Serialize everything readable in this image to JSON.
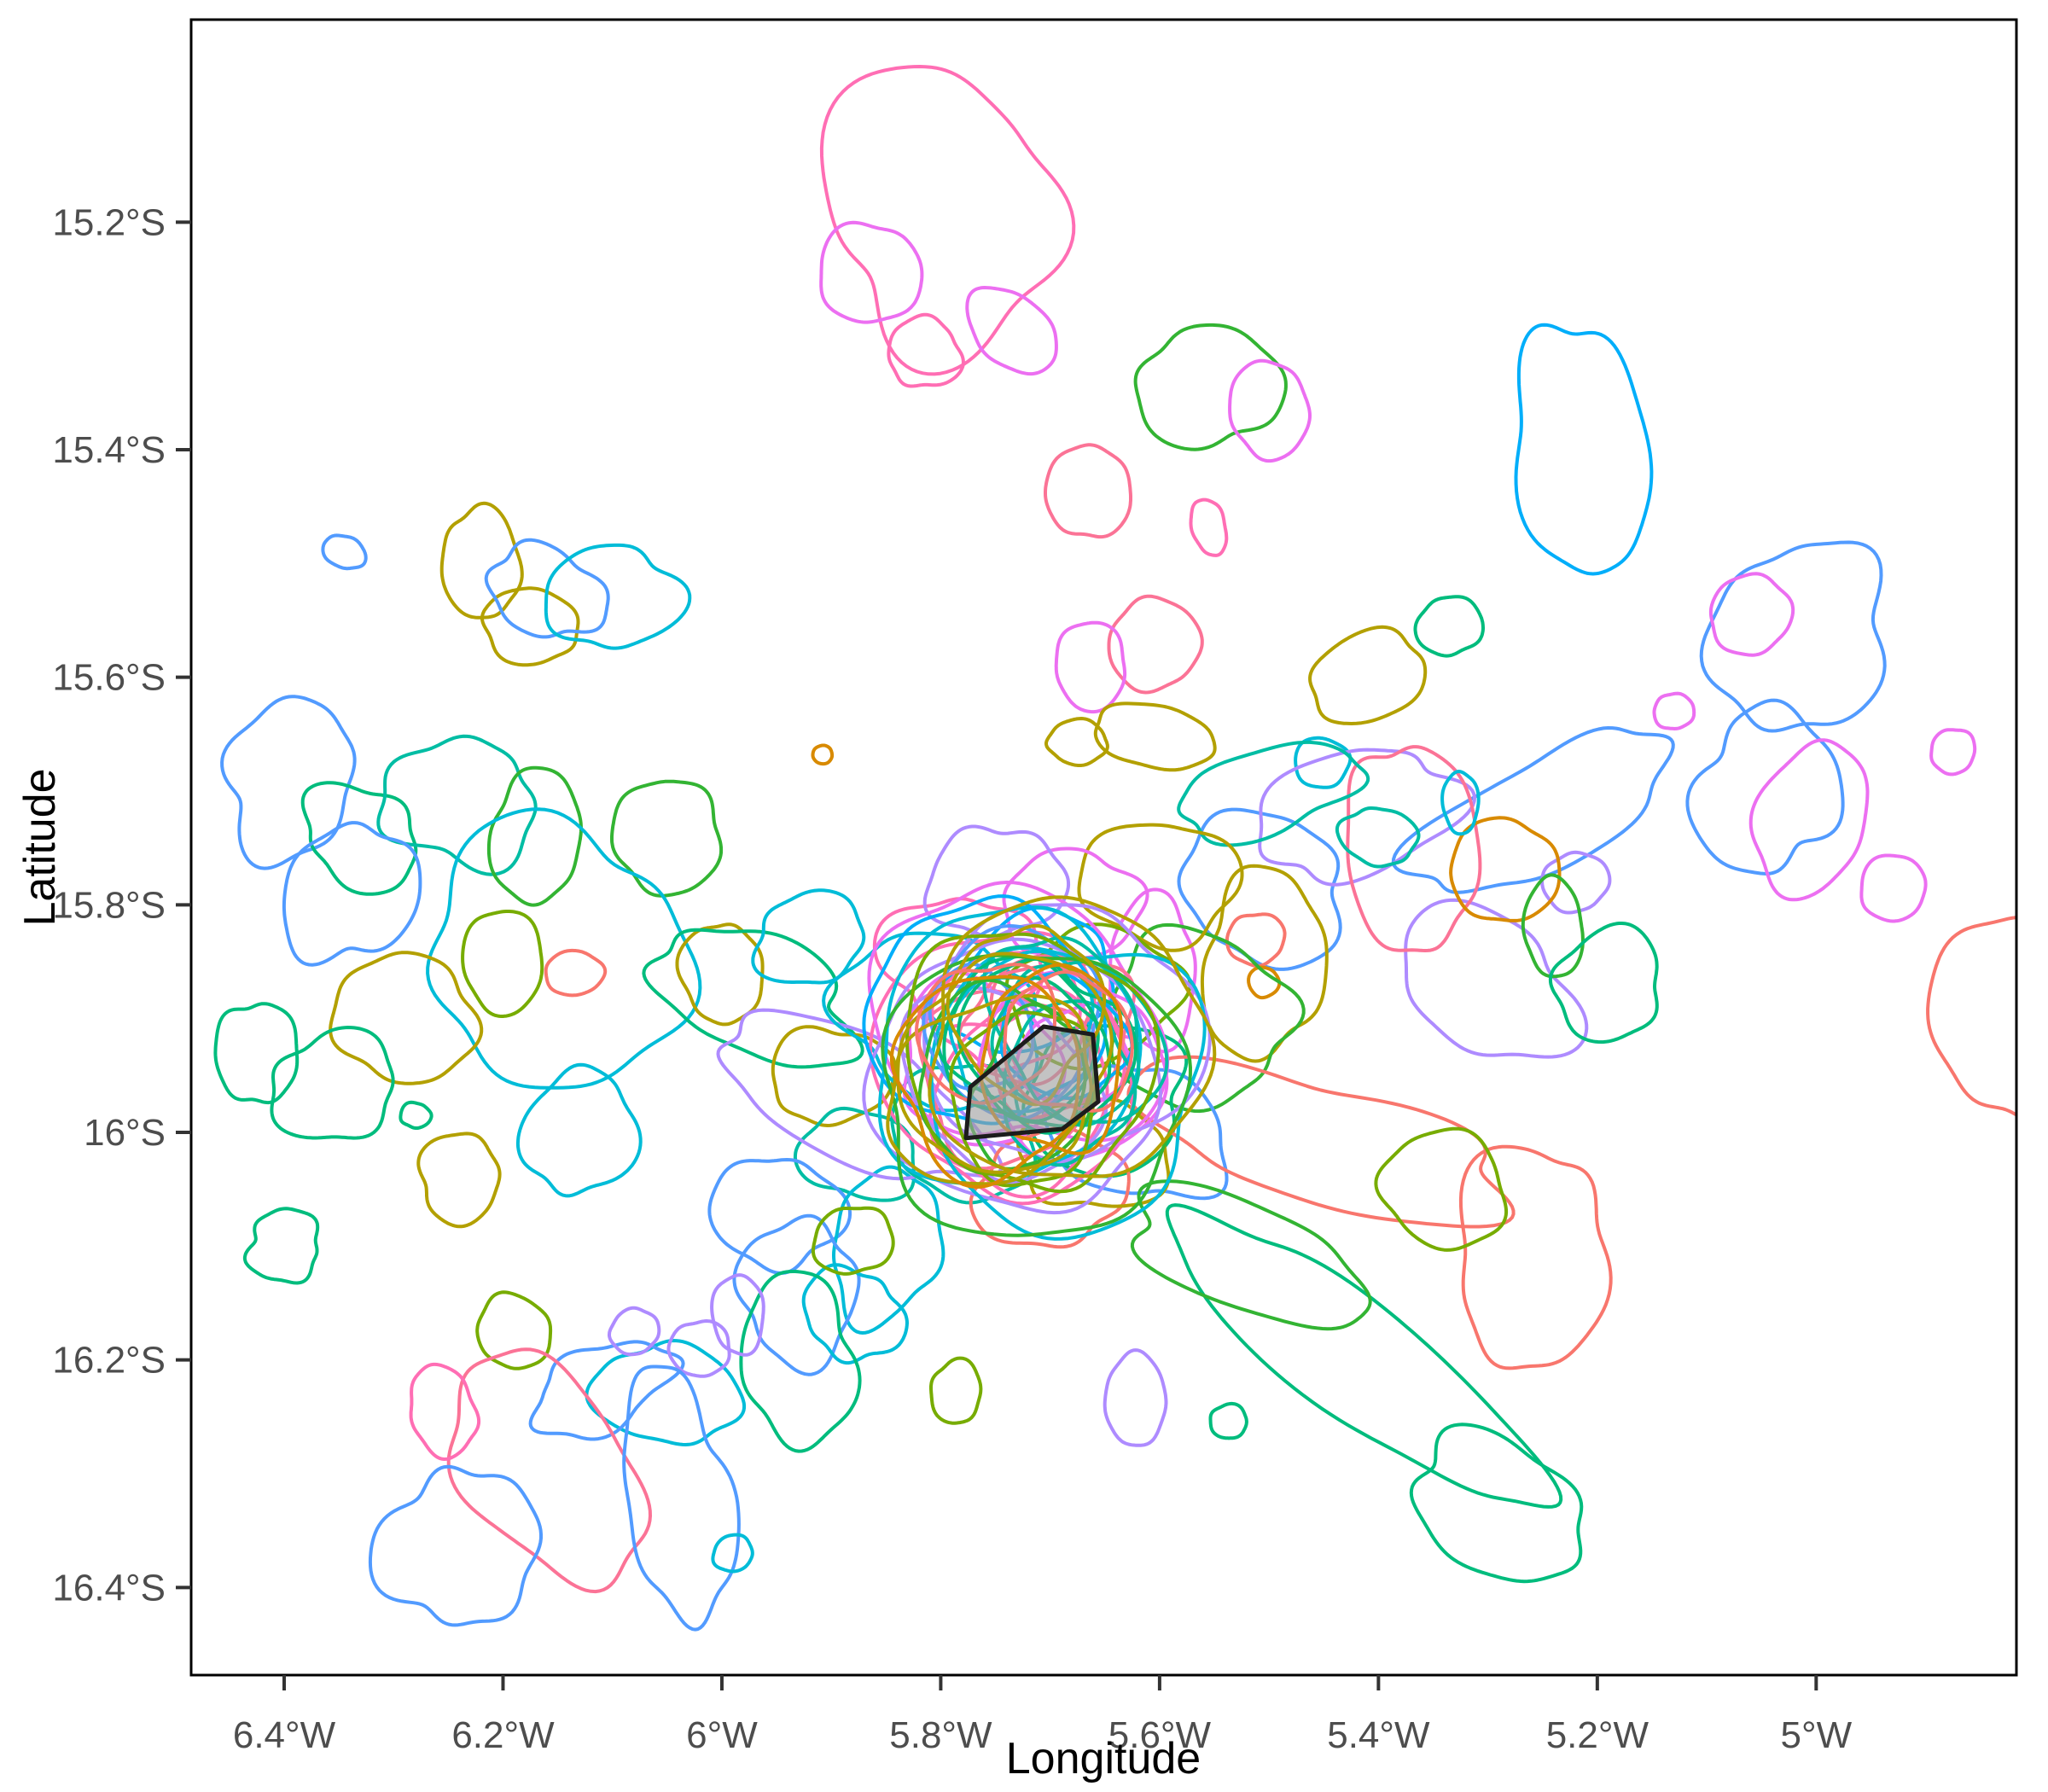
{
  "chart_data": {
    "type": "contour-map",
    "title": "",
    "xlabel": "Longitude",
    "ylabel": "Latitude",
    "x_axis": {
      "tick_lons_west": [
        6.4,
        6.2,
        6.0,
        5.8,
        5.6,
        5.4,
        5.2,
        5.0
      ],
      "tick_labels": [
        "6.4°W",
        "6.2°W",
        "6°W",
        "5.8°W",
        "5.6°W",
        "5.4°W",
        "5.2°W",
        "5°W"
      ],
      "range_lon_west": [
        6.485,
        4.817
      ]
    },
    "y_axis": {
      "tick_lats_south": [
        15.2,
        15.4,
        15.6,
        15.8,
        16.0,
        16.2,
        16.4
      ],
      "tick_labels": [
        "15.2°S",
        "15.4°S",
        "15.6°S",
        "15.8°S",
        "16°S",
        "16.2°S",
        "16.4°S"
      ],
      "range_lat_south": [
        15.022,
        16.477
      ]
    },
    "grid": "off",
    "legend": "none",
    "panel_border_color": "#000000",
    "tick_color": "#333333",
    "tick_label_color": "#4D4D4D",
    "palette": {
      "salmon": "#F8766D",
      "rose": "#FB7396",
      "pink": "#FF6EB4",
      "magenta": "#EC6FF1",
      "purple": "#AE8BFF",
      "blue": "#529BFF",
      "skyblue": "#00AEFA",
      "cyan": "#00BCD8",
      "teal": "#00BDA4",
      "emerald": "#00BC7D",
      "green": "#33B433",
      "applegreen": "#77AC00",
      "olive": "#B3A000",
      "orange": "#D88A00"
    },
    "island_polygon_lonlat": [
      [
        5.706,
        15.907
      ],
      [
        5.661,
        15.914
      ],
      [
        5.656,
        15.973
      ],
      [
        5.689,
        15.997
      ],
      [
        5.777,
        16.005
      ],
      [
        5.773,
        15.96
      ]
    ],
    "island_fill": "#9E9E9E",
    "island_fill_opacity": 0.62,
    "island_stroke": "#1C1C1C",
    "contour_fields": [
      "color",
      "lon_west",
      "lat_south",
      "rx_deg",
      "ry_deg",
      "rot_deg",
      "wobble",
      "seed"
    ],
    "contours": [
      [
        "pink",
        5.8,
        15.19,
        0.105,
        0.125,
        -15,
        0.3,
        11
      ],
      [
        "pink",
        5.815,
        15.315,
        0.034,
        0.03,
        20,
        0.18,
        12
      ],
      [
        "magenta",
        5.865,
        15.245,
        0.047,
        0.044,
        0,
        0.12,
        13
      ],
      [
        "magenta",
        5.735,
        15.295,
        0.046,
        0.031,
        -35,
        0.12,
        14
      ],
      [
        "green",
        5.555,
        15.345,
        0.066,
        0.053,
        -10,
        0.18,
        15
      ],
      [
        "magenta",
        5.5,
        15.365,
        0.036,
        0.043,
        10,
        0.1,
        16
      ],
      [
        "rose",
        5.665,
        15.437,
        0.038,
        0.042,
        0,
        0.1,
        17
      ],
      [
        "pink",
        5.555,
        15.468,
        0.015,
        0.026,
        15,
        0.1,
        18
      ],
      [
        "rose",
        5.605,
        15.571,
        0.042,
        0.04,
        0,
        0.1,
        19
      ],
      [
        "magenta",
        5.663,
        15.59,
        0.033,
        0.038,
        0,
        0.1,
        20
      ],
      [
        "olive",
        5.605,
        15.652,
        0.057,
        0.027,
        -8,
        0.12,
        21
      ],
      [
        "olive",
        5.675,
        15.657,
        0.028,
        0.019,
        5,
        0.12,
        22
      ],
      [
        "orange",
        5.908,
        15.668,
        0.009,
        0.008,
        0,
        0.05,
        23
      ],
      [
        "cyan",
        5.452,
        15.675,
        0.026,
        0.021,
        -20,
        0.12,
        24
      ],
      [
        "skyblue",
        5.215,
        15.4,
        0.058,
        0.118,
        12,
        0.2,
        25
      ],
      [
        "blue",
        5.015,
        15.565,
        0.077,
        0.088,
        -15,
        0.25,
        26
      ],
      [
        "blue",
        5.045,
        15.7,
        0.062,
        0.075,
        10,
        0.25,
        27
      ],
      [
        "blue",
        5.25,
        15.72,
        0.125,
        0.05,
        28,
        0.28,
        28
      ],
      [
        "blue",
        5.505,
        15.785,
        0.075,
        0.065,
        0,
        0.22,
        29
      ],
      [
        "magenta",
        5.005,
        15.725,
        0.05,
        0.068,
        -10,
        0.15,
        30
      ],
      [
        "magenta",
        4.93,
        15.785,
        0.031,
        0.028,
        0,
        0.1,
        31
      ],
      [
        "magenta",
        5.13,
        15.63,
        0.018,
        0.016,
        0,
        0.1,
        32
      ],
      [
        "magenta",
        4.875,
        15.665,
        0.021,
        0.019,
        0,
        0.1,
        33
      ],
      [
        "purple",
        5.3,
        15.87,
        0.085,
        0.06,
        -25,
        0.25,
        34
      ],
      [
        "purple",
        5.42,
        15.72,
        0.092,
        0.055,
        25,
        0.28,
        35
      ],
      [
        "purple",
        5.22,
        15.78,
        0.03,
        0.026,
        0,
        0.12,
        36
      ],
      [
        "rose",
        5.37,
        15.75,
        0.058,
        0.096,
        8,
        0.18,
        37
      ],
      [
        "orange",
        5.285,
        15.77,
        0.049,
        0.046,
        0,
        0.1,
        38
      ],
      [
        "teal",
        5.4,
        15.74,
        0.034,
        0.026,
        -15,
        0.15,
        39
      ],
      [
        "cyan",
        5.325,
        15.71,
        0.017,
        0.026,
        0,
        0.1,
        40
      ],
      [
        "green",
        5.24,
        15.82,
        0.028,
        0.042,
        5,
        0.1,
        41
      ],
      [
        "emerald",
        5.19,
        15.87,
        0.05,
        0.048,
        0,
        0.2,
        42
      ],
      [
        "emerald",
        5.335,
        15.555,
        0.03,
        0.026,
        0,
        0.12,
        43
      ],
      [
        "olive",
        5.41,
        15.6,
        0.055,
        0.038,
        20,
        0.15,
        44
      ],
      [
        "magenta",
        5.06,
        15.545,
        0.038,
        0.034,
        0,
        0.12,
        45
      ],
      [
        "teal",
        5.5,
        15.7,
        0.09,
        0.035,
        15,
        0.25,
        46
      ],
      [
        "olive",
        5.505,
        15.852,
        0.057,
        0.08,
        -5,
        0.22,
        47
      ],
      [
        "salmon",
        5.512,
        15.83,
        0.027,
        0.022,
        0,
        0.1,
        48
      ],
      [
        "orange",
        5.505,
        15.868,
        0.014,
        0.013,
        0,
        0.08,
        49
      ],
      [
        "magenta",
        5.607,
        15.86,
        0.038,
        0.072,
        -5,
        0.18,
        50
      ],
      [
        "blue",
        6.395,
        15.69,
        0.056,
        0.073,
        -30,
        0.25,
        51
      ],
      [
        "olive",
        6.22,
        15.5,
        0.035,
        0.05,
        10,
        0.15,
        52
      ],
      [
        "olive",
        6.175,
        15.555,
        0.045,
        0.032,
        -15,
        0.15,
        53
      ],
      [
        "blue",
        6.16,
        15.525,
        0.052,
        0.04,
        -20,
        0.22,
        54
      ],
      [
        "cyan",
        6.1,
        15.53,
        0.058,
        0.048,
        10,
        0.22,
        55
      ],
      [
        "blue",
        6.345,
        15.49,
        0.02,
        0.014,
        -25,
        0.1,
        56
      ],
      [
        "emerald",
        6.33,
        15.74,
        0.056,
        0.042,
        -20,
        0.25,
        57
      ],
      [
        "teal",
        6.24,
        15.71,
        0.07,
        0.055,
        15,
        0.28,
        58
      ],
      [
        "green",
        6.17,
        15.74,
        0.043,
        0.056,
        0,
        0.15,
        59
      ],
      [
        "green",
        6.05,
        15.74,
        0.048,
        0.052,
        0,
        0.15,
        60
      ],
      [
        "applegreen",
        6.2,
        15.85,
        0.035,
        0.048,
        0,
        0.12,
        61
      ],
      [
        "cyan",
        6.15,
        15.845,
        0.118,
        0.115,
        0,
        0.3,
        62
      ],
      [
        "blue",
        6.34,
        15.79,
        0.056,
        0.066,
        -35,
        0.28,
        63
      ],
      [
        "olive",
        6.29,
        15.9,
        0.063,
        0.058,
        0,
        0.18,
        64
      ],
      [
        "emerald",
        6.355,
        15.96,
        0.058,
        0.047,
        10,
        0.22,
        65
      ],
      [
        "salmon",
        6.135,
        15.86,
        0.026,
        0.02,
        0,
        0.1,
        66
      ],
      [
        "cyan",
        6.13,
        16.0,
        0.047,
        0.06,
        -15,
        0.22,
        67
      ],
      [
        "olive",
        6.24,
        16.04,
        0.038,
        0.038,
        0,
        0.15,
        68
      ],
      [
        "emerald",
        6.28,
        15.985,
        0.014,
        0.011,
        0,
        0.1,
        69
      ],
      [
        "emerald",
        6.425,
        15.93,
        0.036,
        0.047,
        0,
        0.15,
        70
      ],
      [
        "olive",
        6.0,
        15.86,
        0.036,
        0.046,
        0,
        0.15,
        71
      ],
      [
        "emerald",
        6.4,
        16.1,
        0.035,
        0.03,
        0,
        0.28,
        72
      ],
      [
        "emerald",
        5.97,
        15.88,
        0.1,
        0.05,
        -20,
        0.28,
        73
      ],
      [
        "olive",
        5.9,
        15.95,
        0.056,
        0.042,
        15,
        0.2,
        74
      ],
      [
        "teal",
        5.875,
        16.02,
        0.05,
        0.042,
        0,
        0.22,
        75
      ],
      [
        "blue",
        5.95,
        16.07,
        0.058,
        0.05,
        0,
        0.25,
        76
      ],
      [
        "cyan",
        5.85,
        16.1,
        0.05,
        0.066,
        -10,
        0.22,
        77
      ],
      [
        "purple",
        5.88,
        15.97,
        0.14,
        0.05,
        -22,
        0.25,
        78
      ],
      [
        "cyan",
        5.92,
        15.83,
        0.05,
        0.04,
        10,
        0.2,
        79
      ],
      [
        "blue",
        5.93,
        16.14,
        0.056,
        0.06,
        0,
        0.25,
        80
      ],
      [
        "cyan",
        5.88,
        16.16,
        0.045,
        0.04,
        0,
        0.22,
        81
      ],
      [
        "applegreen",
        5.88,
        16.095,
        0.036,
        0.03,
        0,
        0.12,
        82
      ],
      [
        "emerald",
        5.93,
        16.2,
        0.055,
        0.07,
        10,
        0.22,
        83
      ],
      [
        "purple",
        5.985,
        16.16,
        0.025,
        0.033,
        0,
        0.12,
        84
      ],
      [
        "cyan",
        6.05,
        16.23,
        0.065,
        0.045,
        -10,
        0.22,
        85
      ],
      [
        "blue",
        6.11,
        16.225,
        0.068,
        0.035,
        15,
        0.28,
        86
      ],
      [
        "purple",
        6.08,
        16.175,
        0.022,
        0.02,
        0,
        0.1,
        87
      ],
      [
        "purple",
        6.02,
        16.19,
        0.027,
        0.025,
        0,
        0.1,
        88
      ],
      [
        "applegreen",
        6.19,
        16.175,
        0.033,
        0.033,
        0,
        0.12,
        89
      ],
      [
        "rose",
        6.16,
        16.295,
        0.076,
        0.106,
        35,
        0.22,
        90
      ],
      [
        "blue",
        6.24,
        16.365,
        0.068,
        0.073,
        -15,
        0.28,
        91
      ],
      [
        "blue",
        6.04,
        16.32,
        0.05,
        0.106,
        10,
        0.3,
        92
      ],
      [
        "cyan",
        5.99,
        16.37,
        0.018,
        0.016,
        0,
        0.1,
        93
      ],
      [
        "pink",
        6.255,
        16.245,
        0.03,
        0.04,
        25,
        0.15,
        94
      ],
      [
        "green",
        5.565,
        15.9,
        0.09,
        0.07,
        -15,
        0.25,
        95
      ],
      [
        "olive",
        5.6,
        15.78,
        0.07,
        0.055,
        10,
        0.22,
        96
      ],
      [
        "blue",
        5.62,
        16.0,
        0.08,
        0.06,
        -20,
        0.25,
        97
      ],
      [
        "pink",
        5.78,
        15.85,
        0.07,
        0.06,
        0,
        0.22,
        98
      ],
      [
        "magenta",
        5.68,
        15.8,
        0.06,
        0.05,
        0,
        0.22,
        99
      ],
      [
        "teal",
        5.78,
        16.0,
        0.07,
        0.055,
        -10,
        0.22,
        100
      ],
      [
        "emerald",
        5.65,
        15.97,
        0.08,
        0.06,
        15,
        0.22,
        101
      ],
      [
        "cyan",
        5.8,
        15.9,
        0.09,
        0.075,
        0,
        0.28,
        102
      ],
      [
        "salmon",
        5.7,
        16.05,
        0.07,
        0.05,
        0,
        0.22,
        103
      ],
      [
        "purple",
        5.75,
        15.78,
        0.06,
        0.05,
        0,
        0.22,
        104
      ],
      [
        "applegreen",
        5.66,
        15.88,
        0.076,
        0.06,
        0,
        0.22,
        105
      ],
      [
        "rose",
        5.74,
        15.95,
        0.086,
        0.07,
        0,
        0.22,
        106
      ],
      [
        "skyblue",
        5.72,
        15.87,
        0.076,
        0.06,
        20,
        0.22,
        107
      ],
      [
        "olive",
        5.66,
        16.02,
        0.066,
        0.05,
        0,
        0.22,
        108
      ],
      [
        "emerald",
        5.42,
        16.2,
        0.21,
        0.05,
        -37,
        0.18,
        109
      ],
      [
        "emerald",
        5.29,
        16.33,
        0.086,
        0.056,
        -30,
        0.22,
        110
      ],
      [
        "salmon",
        5.26,
        16.11,
        0.068,
        0.1,
        -10,
        0.25,
        111
      ],
      [
        "salmon",
        4.815,
        15.9,
        0.078,
        0.093,
        0,
        0.22,
        112
      ],
      [
        "salmon",
        5.45,
        16.01,
        0.17,
        0.055,
        -12,
        0.28,
        113
      ],
      [
        "applegreen",
        5.34,
        16.05,
        0.058,
        0.05,
        0,
        0.18,
        114
      ],
      [
        "green",
        5.52,
        16.11,
        0.12,
        0.045,
        -20,
        0.22,
        115
      ],
      [
        "purple",
        5.622,
        16.235,
        0.029,
        0.039,
        0,
        0.12,
        116
      ],
      [
        "emerald",
        5.537,
        16.254,
        0.017,
        0.015,
        0,
        0.1,
        117
      ],
      [
        "applegreen",
        5.786,
        16.228,
        0.023,
        0.028,
        0,
        0.12,
        118
      ]
    ],
    "central_cluster": {
      "center_lonlat": [
        5.72,
        15.93
      ],
      "jitter_lon": 0.045,
      "jitter_lat": 0.042,
      "ring_radius_deg": [
        0.05,
        0.135
      ],
      "seed": 777,
      "rings_per_color": [
        [
          "pink",
          4
        ],
        [
          "magenta",
          4
        ],
        [
          "rose",
          2
        ],
        [
          "purple",
          3
        ],
        [
          "cyan",
          3
        ],
        [
          "skyblue",
          2
        ],
        [
          "blue",
          2
        ],
        [
          "teal",
          3
        ],
        [
          "emerald",
          3
        ],
        [
          "green",
          3
        ],
        [
          "applegreen",
          2
        ],
        [
          "olive",
          4
        ],
        [
          "salmon",
          2
        ],
        [
          "orange",
          2
        ]
      ]
    }
  }
}
